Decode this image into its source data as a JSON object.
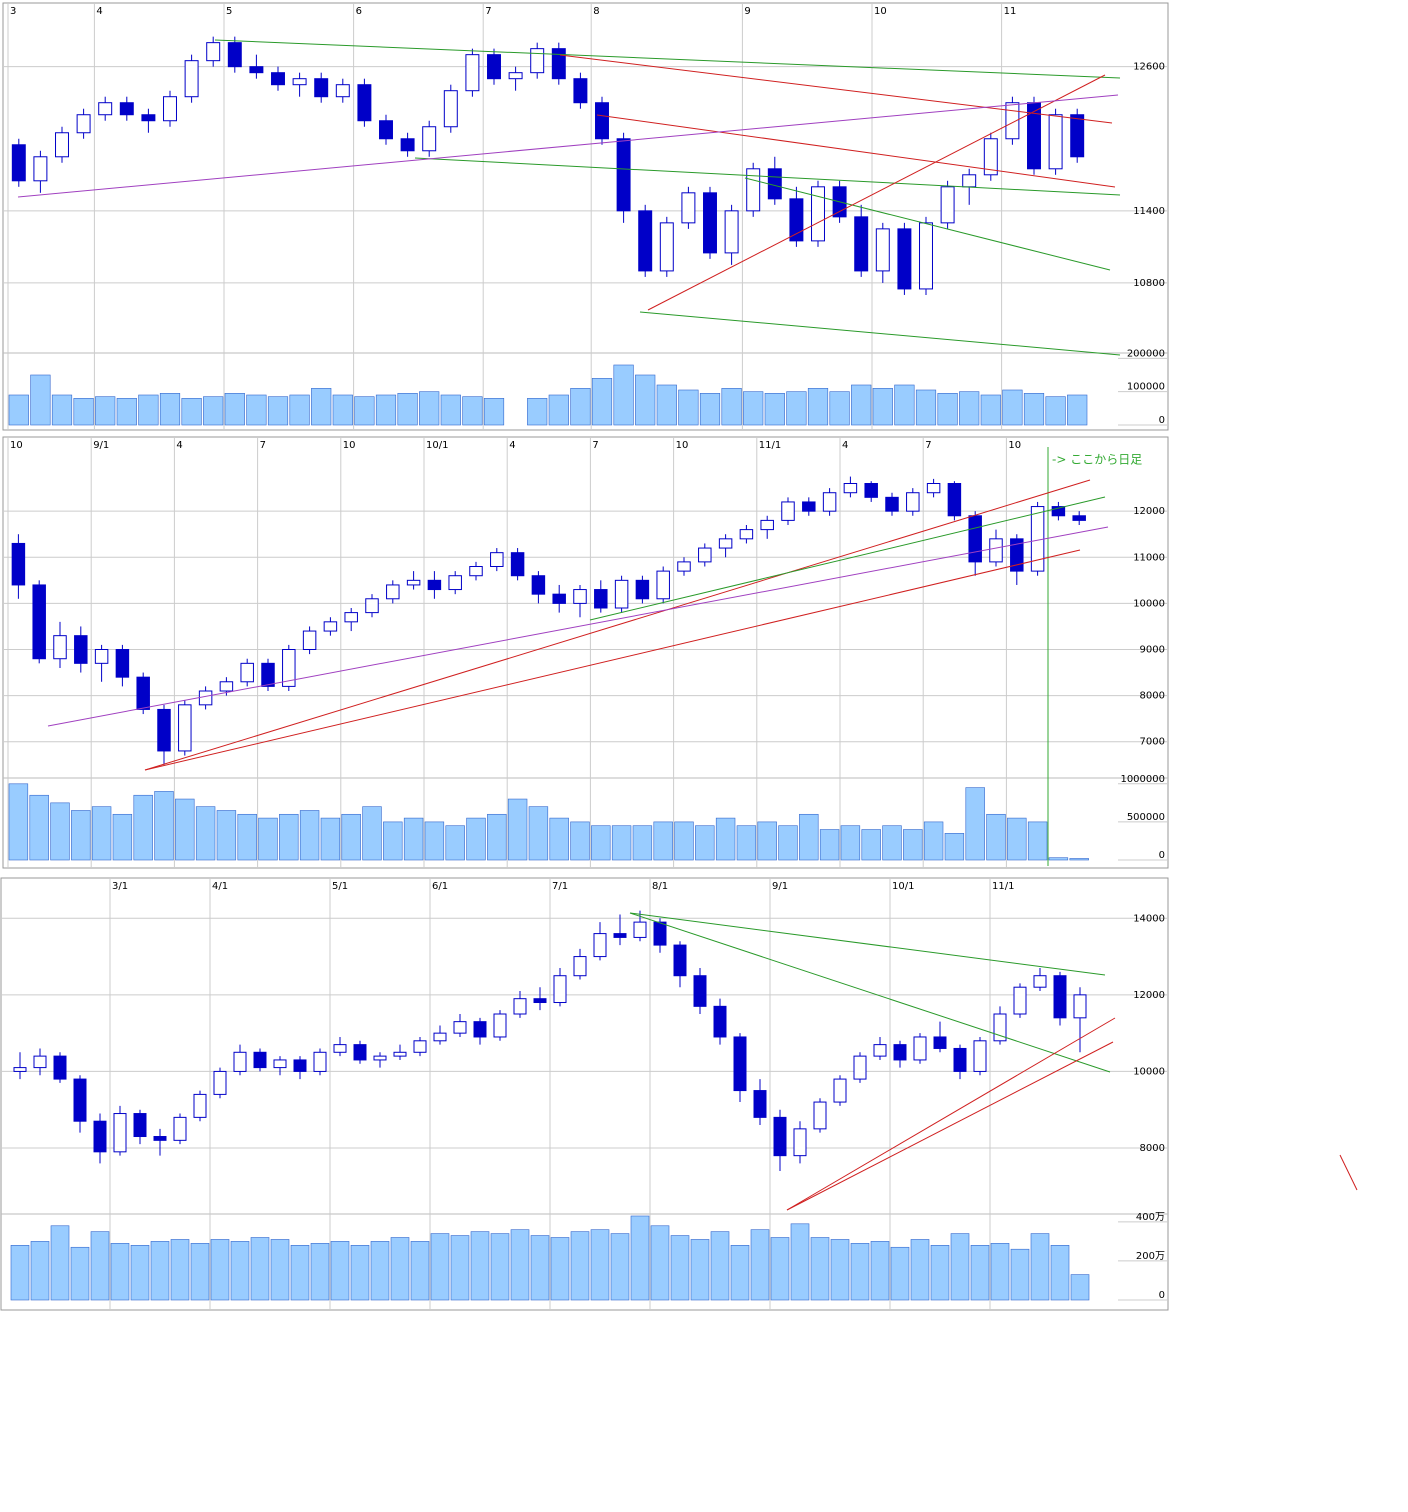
{
  "chart_data": [
    {
      "type": "candlestick",
      "categories": [
        "3",
        null,
        null,
        null,
        "4",
        null,
        null,
        null,
        null,
        null,
        "5",
        null,
        null,
        null,
        null,
        null,
        "6",
        null,
        null,
        null,
        null,
        null,
        "7",
        null,
        null,
        null,
        null,
        "8",
        null,
        null,
        null,
        null,
        null,
        null,
        "9",
        null,
        null,
        null,
        null,
        null,
        "10",
        null,
        null,
        null,
        null,
        null,
        "11",
        null,
        null,
        null
      ],
      "open": [
        11950,
        11650,
        11850,
        12050,
        12200,
        12300,
        12200,
        12150,
        12350,
        12650,
        12800,
        12600,
        12550,
        12450,
        12500,
        12350,
        12450,
        12150,
        12000,
        11900,
        12100,
        12400,
        12700,
        12500,
        12550,
        12750,
        12500,
        12300,
        12000,
        11400,
        10900,
        11300,
        11550,
        11050,
        11400,
        11750,
        11500,
        11150,
        11600,
        11350,
        10900,
        11250,
        10750,
        11300,
        11600,
        11700,
        12000,
        12300,
        11750,
        12200
      ],
      "high": [
        12000,
        11900,
        12100,
        12250,
        12350,
        12350,
        12250,
        12400,
        12700,
        12850,
        12850,
        12700,
        12600,
        12550,
        12550,
        12500,
        12500,
        12200,
        12050,
        12150,
        12450,
        12750,
        12750,
        12600,
        12800,
        12800,
        12550,
        12350,
        12050,
        11450,
        11350,
        11600,
        11600,
        11450,
        11800,
        11850,
        11600,
        11650,
        11650,
        11450,
        11300,
        11300,
        11350,
        11650,
        11750,
        12050,
        12350,
        12350,
        12250,
        12250
      ],
      "low": [
        11600,
        11550,
        11800,
        12000,
        12150,
        12150,
        12050,
        12100,
        12300,
        12600,
        12550,
        12500,
        12400,
        12350,
        12300,
        12300,
        12100,
        11950,
        11850,
        11850,
        12050,
        12350,
        12450,
        12400,
        12500,
        12450,
        12250,
        11950,
        11300,
        10850,
        10850,
        11250,
        11000,
        10950,
        11350,
        11450,
        11100,
        11100,
        11300,
        10850,
        10800,
        10700,
        10700,
        11250,
        11450,
        11650,
        11950,
        11700,
        11700,
        11800
      ],
      "close": [
        11650,
        11850,
        12050,
        12200,
        12300,
        12200,
        12150,
        12350,
        12650,
        12800,
        12600,
        12550,
        12450,
        12500,
        12350,
        12450,
        12150,
        12000,
        11900,
        12100,
        12400,
        12700,
        12500,
        12550,
        12750,
        12500,
        12300,
        12000,
        11400,
        10900,
        11300,
        11550,
        11050,
        11400,
        11750,
        11500,
        11150,
        11600,
        11350,
        10900,
        11250,
        10750,
        11300,
        11600,
        11700,
        12000,
        12300,
        11750,
        12200,
        11850
      ],
      "volume": [
        90000,
        150000,
        90000,
        80000,
        85000,
        80000,
        90000,
        95000,
        80000,
        85000,
        95000,
        90000,
        85000,
        90000,
        110000,
        90000,
        85000,
        90000,
        95000,
        100000,
        90000,
        85000,
        80000,
        0,
        80000,
        90000,
        110000,
        140000,
        180000,
        150000,
        120000,
        105000,
        95000,
        110000,
        100000,
        95000,
        100000,
        110000,
        100000,
        120000,
        110000,
        120000,
        105000,
        95000,
        100000,
        90000,
        105000,
        95000,
        85000,
        90000
      ],
      "ylim": [
        10250,
        13130
      ],
      "yticks": [
        10800,
        11400,
        12600
      ],
      "volume_ylim": [
        0,
        210000
      ],
      "volume_ticks": [
        0,
        100000,
        200000
      ],
      "grid": true,
      "colors": {
        "up": "#ffffff",
        "down": "#0000c8",
        "edge": "#0000c8",
        "volume": "#99ccff",
        "volume_edge": "#3366cc"
      }
    },
    {
      "type": "candlestick",
      "categories": [
        "10",
        null,
        null,
        null,
        "9/1",
        null,
        null,
        null,
        "4",
        null,
        null,
        null,
        "7",
        null,
        null,
        null,
        "10",
        null,
        null,
        null,
        "10/1",
        null,
        null,
        null,
        "4",
        null,
        null,
        null,
        "7",
        null,
        null,
        null,
        "10",
        null,
        null,
        null,
        "11/1",
        null,
        null,
        null,
        "4",
        null,
        null,
        null,
        "7",
        null,
        null,
        null,
        "10",
        null,
        null,
        null
      ],
      "open": [
        11300,
        10400,
        8800,
        9300,
        8700,
        9000,
        8400,
        7700,
        6800,
        7800,
        8100,
        8300,
        8700,
        8200,
        9000,
        9400,
        9600,
        9800,
        10100,
        10400,
        10500,
        10300,
        10600,
        10800,
        11100,
        10600,
        10200,
        10000,
        10300,
        9900,
        10500,
        10100,
        10700,
        10900,
        11200,
        11400,
        11600,
        11800,
        12200,
        12000,
        12400,
        12600,
        12300,
        12000,
        12400,
        12600,
        11900,
        10900,
        11400,
        10700,
        12100,
        11900
      ],
      "high": [
        11500,
        10500,
        9600,
        9500,
        9100,
        9100,
        8500,
        7800,
        7900,
        8200,
        8400,
        8800,
        8800,
        9100,
        9500,
        9700,
        9900,
        10200,
        10500,
        10700,
        10700,
        10700,
        10900,
        11200,
        11200,
        10700,
        10400,
        10400,
        10500,
        10600,
        10600,
        10800,
        11000,
        11300,
        11500,
        11700,
        11900,
        12300,
        12300,
        12500,
        12750,
        12650,
        12400,
        12500,
        12700,
        12650,
        12000,
        11600,
        11500,
        12200,
        12200,
        12000
      ],
      "low": [
        10100,
        8700,
        8600,
        8500,
        8300,
        8200,
        7600,
        6500,
        6700,
        7700,
        8000,
        8200,
        8100,
        8100,
        8900,
        9300,
        9400,
        9700,
        10000,
        10300,
        10100,
        10200,
        10500,
        10700,
        10500,
        10000,
        9800,
        9700,
        9800,
        9800,
        10000,
        10000,
        10600,
        10800,
        11000,
        11300,
        11400,
        11700,
        11900,
        11900,
        12300,
        12200,
        11900,
        11900,
        12300,
        11800,
        10600,
        10800,
        10400,
        10600,
        11800,
        11700
      ],
      "close": [
        10400,
        8800,
        9300,
        8700,
        9000,
        8400,
        7700,
        6800,
        7800,
        8100,
        8300,
        8700,
        8200,
        9000,
        9400,
        9600,
        9800,
        10100,
        10400,
        10500,
        10300,
        10600,
        10800,
        11100,
        10600,
        10200,
        10000,
        10300,
        9900,
        10500,
        10100,
        10700,
        10900,
        11200,
        11400,
        11600,
        11800,
        12200,
        12000,
        12400,
        12600,
        12300,
        12000,
        12400,
        12600,
        11900,
        10900,
        11400,
        10700,
        12100,
        11900,
        11800
      ],
      "volume": [
        1000000,
        850000,
        750000,
        650000,
        700000,
        600000,
        850000,
        900000,
        800000,
        700000,
        650000,
        600000,
        550000,
        600000,
        650000,
        550000,
        600000,
        700000,
        500000,
        550000,
        500000,
        450000,
        550000,
        600000,
        800000,
        700000,
        550000,
        500000,
        450000,
        450000,
        450000,
        500000,
        500000,
        450000,
        550000,
        450000,
        500000,
        450000,
        600000,
        400000,
        450000,
        400000,
        450000,
        400000,
        500000,
        350000,
        950000,
        600000,
        550000,
        500000,
        30000,
        20000
      ],
      "ylim": [
        6300,
        13500
      ],
      "yticks": [
        7000,
        8000,
        9000,
        10000,
        11000,
        12000
      ],
      "volume_ylim": [
        0,
        1050000
      ],
      "volume_ticks": [
        0,
        500000,
        1000000
      ],
      "annotation": "-> ここから日足",
      "annotation_color": "#33aa33",
      "grid": true,
      "colors": {
        "up": "#ffffff",
        "down": "#0000c8",
        "edge": "#0000c8",
        "volume": "#99ccff",
        "volume_edge": "#3366cc"
      }
    },
    {
      "type": "candlestick",
      "categories": [
        null,
        null,
        null,
        null,
        null,
        "3/1",
        null,
        null,
        null,
        null,
        "4/1",
        null,
        null,
        null,
        null,
        null,
        "5/1",
        null,
        null,
        null,
        null,
        "6/1",
        null,
        null,
        null,
        null,
        null,
        "7/1",
        null,
        null,
        null,
        null,
        "8/1",
        null,
        null,
        null,
        null,
        null,
        "9/1",
        null,
        null,
        null,
        null,
        null,
        "10/1",
        null,
        null,
        null,
        null,
        "11/1",
        null,
        null,
        null,
        null
      ],
      "open": [
        10000,
        10100,
        10400,
        9800,
        8700,
        7900,
        8900,
        8300,
        8200,
        8800,
        9400,
        10000,
        10500,
        10100,
        10300,
        10000,
        10500,
        10700,
        10300,
        10400,
        10500,
        10800,
        11000,
        11300,
        10900,
        11500,
        11900,
        11800,
        12500,
        13000,
        13600,
        13500,
        13900,
        13300,
        12500,
        11700,
        10900,
        9500,
        8800,
        7800,
        8500,
        9200,
        9800,
        10400,
        10700,
        10300,
        10900,
        10600,
        10000,
        10800,
        11500,
        12200,
        12500,
        11400
      ],
      "high": [
        10500,
        10600,
        10500,
        9900,
        8900,
        9100,
        9000,
        8500,
        8900,
        9500,
        10100,
        10700,
        10600,
        10400,
        10400,
        10600,
        10900,
        10800,
        10500,
        10700,
        10900,
        11200,
        11500,
        11400,
        11600,
        12100,
        12200,
        12700,
        13200,
        13900,
        14100,
        14200,
        14000,
        13400,
        12700,
        11900,
        11000,
        9800,
        9000,
        8700,
        9300,
        9900,
        10500,
        10900,
        10800,
        11000,
        11300,
        10700,
        10900,
        11700,
        12300,
        12700,
        12600,
        12200
      ],
      "low": [
        9800,
        9900,
        9700,
        8400,
        7600,
        7800,
        8100,
        7800,
        8100,
        8700,
        9300,
        9900,
        10000,
        9900,
        9800,
        9900,
        10400,
        10200,
        10100,
        10300,
        10400,
        10700,
        10900,
        10700,
        10800,
        11400,
        11600,
        11700,
        12400,
        12900,
        13300,
        13400,
        13100,
        12200,
        11500,
        10700,
        9200,
        8600,
        7400,
        7600,
        8400,
        9100,
        9700,
        10300,
        10100,
        10200,
        10500,
        9800,
        9900,
        10700,
        11400,
        12100,
        11200,
        10500
      ],
      "close": [
        10100,
        10400,
        9800,
        8700,
        7900,
        8900,
        8300,
        8200,
        8800,
        9400,
        10000,
        10500,
        10100,
        10300,
        10000,
        10500,
        10700,
        10300,
        10400,
        10500,
        10800,
        11000,
        11300,
        10900,
        11500,
        11900,
        11800,
        12500,
        13000,
        13600,
        13500,
        13900,
        13300,
        12500,
        11700,
        10900,
        9500,
        8800,
        7800,
        8500,
        9200,
        9800,
        10400,
        10700,
        10300,
        10900,
        10600,
        10000,
        10800,
        11500,
        12200,
        12500,
        11400,
        12000
      ],
      "volume": [
        2800000,
        3000000,
        3800000,
        2700000,
        3500000,
        2900000,
        2800000,
        3000000,
        3100000,
        2900000,
        3100000,
        3000000,
        3200000,
        3100000,
        2800000,
        2900000,
        3000000,
        2800000,
        3000000,
        3200000,
        3000000,
        3400000,
        3300000,
        3500000,
        3400000,
        3600000,
        3300000,
        3200000,
        3500000,
        3600000,
        3400000,
        4300000,
        3800000,
        3300000,
        3100000,
        3500000,
        2800000,
        3600000,
        3200000,
        3900000,
        3200000,
        3100000,
        2900000,
        3000000,
        2700000,
        3100000,
        2800000,
        3400000,
        2800000,
        2900000,
        2600000,
        3400000,
        2800000,
        1300000
      ],
      "ylim": [
        6250,
        15000
      ],
      "yticks": [
        8000,
        10000,
        12000,
        14000
      ],
      "volume_ylim": [
        0,
        4300000
      ],
      "volume_ticks": [
        0,
        {
          "value": 2000000,
          "label": "200万"
        },
        {
          "value": 4000000,
          "label": "400万"
        }
      ],
      "grid": true,
      "colors": {
        "up": "#ffffff",
        "down": "#0000c8",
        "edge": "#0000c8",
        "volume": "#99ccff",
        "volume_edge": "#3366cc"
      }
    }
  ]
}
